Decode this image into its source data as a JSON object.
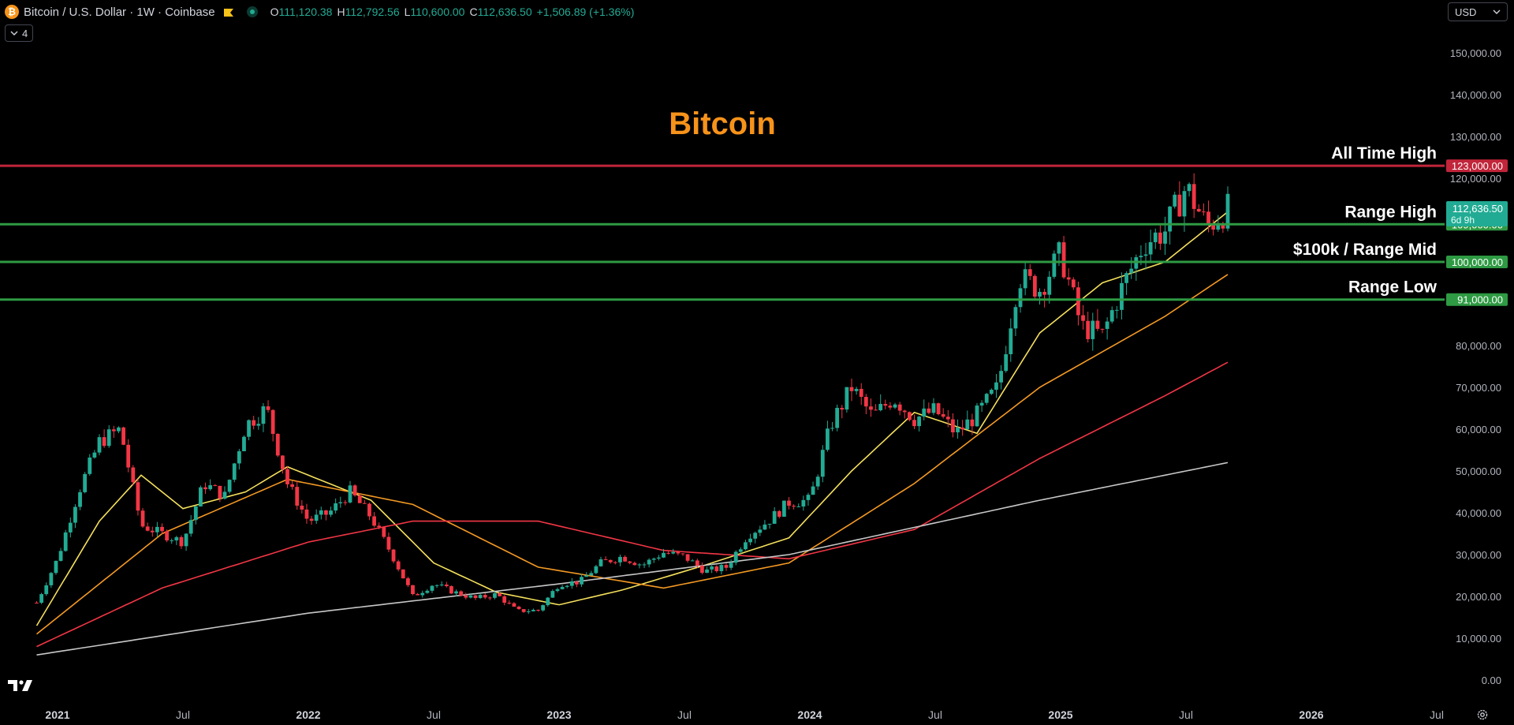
{
  "header": {
    "coin_symbol": "₿",
    "title": "Bitcoin / U.S. Dollar · 1W · Coinbase",
    "ohlc": [
      {
        "key": "O",
        "value": "111,120.38"
      },
      {
        "key": "H",
        "value": "112,792.56"
      },
      {
        "key": "L",
        "value": "110,600.00"
      },
      {
        "key": "C",
        "value": "112,636.50"
      }
    ],
    "change": "+1,506.89 (+1.36%)",
    "flag_icon": "flag-icon",
    "status_icon": "market-status-icon"
  },
  "indicators_toggle": {
    "label": "4",
    "icon": "chevron-down-icon"
  },
  "currency": {
    "selected": "USD",
    "icon": "chevron-down-icon"
  },
  "logo": "tradingview-logo-icon",
  "settings_icon": "gear-icon",
  "colors": {
    "background": "#000000",
    "up": "#22ab94",
    "down": "#f23645",
    "title": "#f7931a",
    "ath_line": "#c1253a",
    "range_line": "#2e9a43",
    "ma_yellow": "#f5e05c",
    "ma_orange": "#f59a23",
    "ma_red": "#f23645",
    "ma_white": "#c8c8c8"
  },
  "chart_data": {
    "type": "candlestick",
    "title": "Bitcoin",
    "x_tick_labels": [
      "2021",
      "Jul",
      "2022",
      "Jul",
      "2023",
      "Jul",
      "2024",
      "Jul",
      "2025",
      "Jul",
      "2026",
      "Jul"
    ],
    "x_ticks": [
      "2021-01",
      "2021-07",
      "2022-01",
      "2022-07",
      "2023-01",
      "2023-07",
      "2024-01",
      "2024-07",
      "2025-01",
      "2025-07",
      "2026-01",
      "2026-07"
    ],
    "y_ticks": [
      0,
      10000,
      20000,
      30000,
      40000,
      50000,
      60000,
      70000,
      80000,
      120000,
      130000,
      140000,
      150000
    ],
    "y_tick_labels": [
      "0.00",
      "10,000.00",
      "20,000.00",
      "30,000.00",
      "40,000.00",
      "50,000.00",
      "60,000.00",
      "70,000.00",
      "80,000.00",
      "120,000.00",
      "130,000.00",
      "140,000.00",
      "150,000.00"
    ],
    "ylim": [
      0,
      160000
    ],
    "xlim": [
      "2020-12",
      "2026-08"
    ],
    "price_anchors": [
      [
        "2020-12",
        18500
      ],
      [
        "2021-01",
        29000
      ],
      [
        "2021-02",
        45000
      ],
      [
        "2021-03",
        57000
      ],
      [
        "2021-04",
        60000
      ],
      [
        "2021-05",
        37000
      ],
      [
        "2021-06",
        35000
      ],
      [
        "2021-07",
        33000
      ],
      [
        "2021-08",
        47000
      ],
      [
        "2021-09",
        44000
      ],
      [
        "2021-10",
        61000
      ],
      [
        "2021-11",
        65000
      ],
      [
        "2021-12",
        47000
      ],
      [
        "2022-01",
        38000
      ],
      [
        "2022-02",
        40000
      ],
      [
        "2022-03",
        45000
      ],
      [
        "2022-04",
        39000
      ],
      [
        "2022-05",
        30000
      ],
      [
        "2022-06",
        20000
      ],
      [
        "2022-07",
        23000
      ],
      [
        "2022-08",
        21000
      ],
      [
        "2022-09",
        19500
      ],
      [
        "2022-10",
        20500
      ],
      [
        "2022-11",
        16500
      ],
      [
        "2022-12",
        16700
      ],
      [
        "2023-01",
        23000
      ],
      [
        "2023-02",
        23500
      ],
      [
        "2023-03",
        28000
      ],
      [
        "2023-04",
        29500
      ],
      [
        "2023-05",
        27500
      ],
      [
        "2023-06",
        30500
      ],
      [
        "2023-07",
        29500
      ],
      [
        "2023-08",
        26000
      ],
      [
        "2023-09",
        27000
      ],
      [
        "2023-10",
        34500
      ],
      [
        "2023-11",
        38000
      ],
      [
        "2023-12",
        42500
      ],
      [
        "2024-01",
        43000
      ],
      [
        "2024-02",
        61000
      ],
      [
        "2024-03",
        70000
      ],
      [
        "2024-04",
        63000
      ],
      [
        "2024-05",
        67500
      ],
      [
        "2024-06",
        62500
      ],
      [
        "2024-07",
        64500
      ],
      [
        "2024-08",
        59000
      ],
      [
        "2024-09",
        63500
      ],
      [
        "2024-10",
        70000
      ],
      [
        "2024-11",
        96500
      ],
      [
        "2024-12",
        93500
      ],
      [
        "2025-01",
        102000
      ],
      [
        "2025-02",
        84500
      ],
      [
        "2025-03",
        82500
      ],
      [
        "2025-04",
        94500
      ],
      [
        "2025-05",
        104500
      ],
      [
        "2025-06",
        107500
      ],
      [
        "2025-07",
        118000
      ],
      [
        "2025-08",
        108500
      ],
      [
        "2025-09",
        112636.5
      ]
    ],
    "moving_averages": [
      {
        "color": "#f5e05c",
        "anchors": [
          [
            "2020-12",
            13000
          ],
          [
            "2021-03",
            38000
          ],
          [
            "2021-05",
            49000
          ],
          [
            "2021-07",
            41000
          ],
          [
            "2021-10",
            45000
          ],
          [
            "2021-12",
            51000
          ],
          [
            "2022-04",
            43000
          ],
          [
            "2022-07",
            28000
          ],
          [
            "2022-10",
            21000
          ],
          [
            "2023-01",
            18000
          ],
          [
            "2023-04",
            21500
          ],
          [
            "2023-08",
            27500
          ],
          [
            "2023-12",
            34000
          ],
          [
            "2024-03",
            50000
          ],
          [
            "2024-06",
            64000
          ],
          [
            "2024-09",
            59000
          ],
          [
            "2024-12",
            83000
          ],
          [
            "2025-03",
            95000
          ],
          [
            "2025-06",
            100000
          ],
          [
            "2025-09",
            112000
          ]
        ]
      },
      {
        "color": "#f59a23",
        "anchors": [
          [
            "2020-12",
            11000
          ],
          [
            "2021-06",
            35000
          ],
          [
            "2021-12",
            48000
          ],
          [
            "2022-06",
            42000
          ],
          [
            "2022-12",
            27000
          ],
          [
            "2023-06",
            22000
          ],
          [
            "2023-12",
            28000
          ],
          [
            "2024-06",
            47000
          ],
          [
            "2024-12",
            70000
          ],
          [
            "2025-06",
            87000
          ],
          [
            "2025-09",
            97000
          ]
        ]
      },
      {
        "color": "#f23645",
        "anchors": [
          [
            "2020-12",
            8000
          ],
          [
            "2021-06",
            22000
          ],
          [
            "2022-01",
            33000
          ],
          [
            "2022-06",
            38000
          ],
          [
            "2022-12",
            38000
          ],
          [
            "2023-06",
            31000
          ],
          [
            "2023-12",
            29000
          ],
          [
            "2024-06",
            36000
          ],
          [
            "2024-12",
            53000
          ],
          [
            "2025-06",
            68000
          ],
          [
            "2025-09",
            76000
          ]
        ]
      },
      {
        "color": "#c8c8c8",
        "anchors": [
          [
            "2020-12",
            6000
          ],
          [
            "2022-01",
            16000
          ],
          [
            "2023-01",
            23000
          ],
          [
            "2023-12",
            30000
          ],
          [
            "2024-12",
            43000
          ],
          [
            "2025-09",
            52000
          ]
        ]
      }
    ],
    "horizontal_levels": [
      {
        "label": "All Time High",
        "value": 123000,
        "value_label": "123,000.00",
        "color": "#c1253a"
      },
      {
        "label": "Range High",
        "value": 109000,
        "value_label": "109,000.00",
        "color": "#2e9a43"
      },
      {
        "label": "$100k / Range Mid",
        "value": 100000,
        "value_label": "100,000.00",
        "color": "#2e9a43"
      },
      {
        "label": "Range Low",
        "value": 91000,
        "value_label": "91,000.00",
        "color": "#2e9a43"
      }
    ],
    "last_price": {
      "value": 112636.5,
      "value_label": "112,636.50",
      "countdown": "6d 9h",
      "color": "#22ab94"
    }
  }
}
